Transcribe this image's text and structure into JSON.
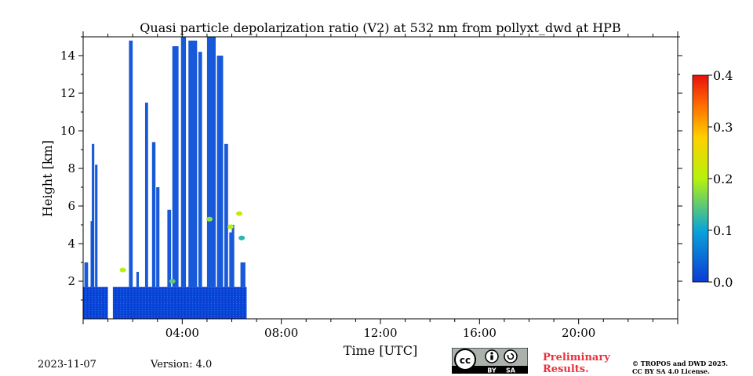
{
  "chart_data": {
    "type": "heatmap",
    "title": "Quasi particle depolarization ratio (V2) at 532 nm from pollyxt_dwd at HPB",
    "xlabel": "Time [UTC]",
    "ylabel": "Height [km]",
    "x_range_hours": [
      0,
      24
    ],
    "ylim": [
      0,
      15
    ],
    "x_ticks": [
      {
        "hour": 4,
        "label": "04:00"
      },
      {
        "hour": 8,
        "label": "08:00"
      },
      {
        "hour": 12,
        "label": "12:00"
      },
      {
        "hour": 16,
        "label": "16:00"
      },
      {
        "hour": 20,
        "label": "20:00"
      }
    ],
    "y_ticks": [
      {
        "value": 2,
        "label": "2"
      },
      {
        "value": 4,
        "label": "4"
      },
      {
        "value": 6,
        "label": "6"
      },
      {
        "value": 8,
        "label": "8"
      },
      {
        "value": 10,
        "label": "10"
      },
      {
        "value": 12,
        "label": "12"
      },
      {
        "value": 14,
        "label": "14"
      }
    ],
    "colorbar": {
      "range": [
        0.0,
        0.4
      ],
      "ticks": [
        "0.0",
        "0.1",
        "0.2",
        "0.3",
        "0.4"
      ],
      "colormap": "jet"
    },
    "data_end_hour": 6.6,
    "gap_hours": [
      1.0,
      1.2
    ],
    "base_layer_top_km": 1.7,
    "columns": [
      {
        "start_hour": 0.05,
        "end_hour": 0.2,
        "top_km": 3.0,
        "value": 0.02
      },
      {
        "start_hour": 0.3,
        "end_hour": 0.4,
        "top_km": 5.2,
        "value": 0.02
      },
      {
        "start_hour": 0.35,
        "end_hour": 0.45,
        "top_km": 9.3,
        "value": 0.02
      },
      {
        "start_hour": 0.48,
        "end_hour": 0.58,
        "top_km": 8.2,
        "value": 0.02
      },
      {
        "start_hour": 1.85,
        "end_hour": 2.0,
        "top_km": 14.8,
        "value": 0.02
      },
      {
        "start_hour": 2.15,
        "end_hour": 2.25,
        "top_km": 2.5,
        "value": 0.02
      },
      {
        "start_hour": 2.5,
        "end_hour": 2.62,
        "top_km": 11.5,
        "value": 0.02
      },
      {
        "start_hour": 2.78,
        "end_hour": 2.92,
        "top_km": 9.4,
        "value": 0.02
      },
      {
        "start_hour": 2.95,
        "end_hour": 3.08,
        "top_km": 7.0,
        "value": 0.02
      },
      {
        "start_hour": 3.4,
        "end_hour": 3.55,
        "top_km": 5.8,
        "value": 0.02
      },
      {
        "start_hour": 3.6,
        "end_hour": 3.85,
        "top_km": 14.5,
        "value": 0.02
      },
      {
        "start_hour": 3.95,
        "end_hour": 4.15,
        "top_km": 15.0,
        "value": 0.02
      },
      {
        "start_hour": 4.25,
        "end_hour": 4.6,
        "top_km": 14.8,
        "value": 0.02
      },
      {
        "start_hour": 4.65,
        "end_hour": 4.8,
        "top_km": 14.2,
        "value": 0.02
      },
      {
        "start_hour": 5.0,
        "end_hour": 5.35,
        "top_km": 15.0,
        "value": 0.02
      },
      {
        "start_hour": 5.4,
        "end_hour": 5.65,
        "top_km": 14.0,
        "value": 0.02
      },
      {
        "start_hour": 5.7,
        "end_hour": 5.85,
        "top_km": 9.3,
        "value": 0.02
      },
      {
        "start_hour": 5.9,
        "end_hour": 6.0,
        "top_km": 4.6,
        "value": 0.02
      },
      {
        "start_hour": 6.0,
        "end_hour": 6.1,
        "top_km": 5.0,
        "value": 0.02
      },
      {
        "start_hour": 6.35,
        "end_hour": 6.55,
        "top_km": 3.0,
        "value": 0.02
      }
    ],
    "highlights": [
      {
        "hour": 5.1,
        "height_km": 5.3,
        "value": 0.18
      },
      {
        "hour": 5.95,
        "height_km": 4.9,
        "value": 0.2
      },
      {
        "hour": 6.3,
        "height_km": 5.6,
        "value": 0.22
      },
      {
        "hour": 6.4,
        "height_km": 4.3,
        "value": 0.12
      },
      {
        "hour": 3.6,
        "height_km": 2.0,
        "value": 0.15
      },
      {
        "hour": 1.6,
        "height_km": 2.6,
        "value": 0.2
      }
    ]
  },
  "footer": {
    "date": "2023-11-07",
    "version": "Version: 4.0",
    "cc_symbol": "cc",
    "cc_by": "BY",
    "cc_sa": "SA",
    "preliminary_line1": "Preliminary",
    "preliminary_line2": "Results.",
    "copyright_line1": "© TROPOS and DWD 2025.",
    "copyright_line2": "CC BY SA 4.0 License."
  }
}
